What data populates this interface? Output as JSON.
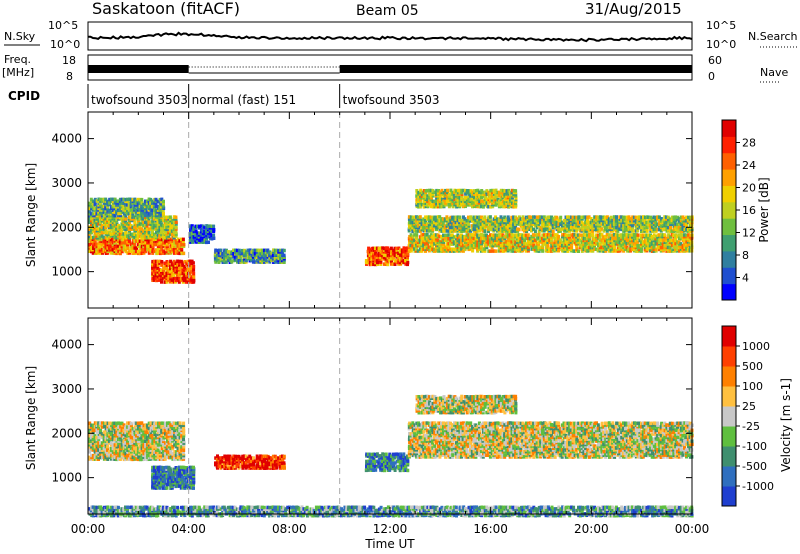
{
  "header": {
    "station": "Saskatoon (fitACF)",
    "beam": "Beam 05",
    "date": "31/Aug/2015"
  },
  "noise_panel": {
    "left_label": "N.Sky",
    "right_label": "N.Search",
    "ticks": [
      "10^5",
      "10^0"
    ]
  },
  "freq_panel": {
    "left_label_1": "Freq.",
    "left_label_2": "[MHz]",
    "left_ticks": [
      18,
      8
    ],
    "right_label": "Nave",
    "right_ticks": [
      60,
      0
    ]
  },
  "cpid": {
    "label": "CPID",
    "segments": [
      {
        "name": "twofsound 3503",
        "start": 0,
        "end": 4
      },
      {
        "name": "normal (fast) 151",
        "start": 4,
        "end": 10
      },
      {
        "name": "twofsound 3503",
        "start": 10,
        "end": 24
      }
    ]
  },
  "chart_data": [
    {
      "type": "heatmap",
      "quantity": "Power",
      "xlabel": "Time UT",
      "ylabel": "Slant Range [km]",
      "xlim": [
        0,
        24
      ],
      "ylim": [
        180,
        4600
      ],
      "yticks": [
        1000,
        2000,
        3000,
        4000
      ],
      "xticks": [
        "00:00",
        "04:00",
        "08:00",
        "12:00",
        "16:00",
        "20:00",
        "00:00"
      ],
      "colorbar": {
        "label": "Power [dB]",
        "ticks": [
          "4",
          "8",
          "12",
          "16",
          "20",
          "24",
          "28"
        ],
        "colors": [
          "#0000ff",
          "#1f4fd0",
          "#2f7fa0",
          "#3f9f70",
          "#6fbf3f",
          "#bfd020",
          "#f0d000",
          "#ffa000",
          "#ff6000",
          "#ff2000",
          "#e00000"
        ]
      },
      "echo_bands": [
        {
          "t0": 0.0,
          "t1": 3.8,
          "r0": 1450,
          "r1": 1800,
          "level": 0.75
        },
        {
          "t0": 0.0,
          "t1": 3.5,
          "r0": 1800,
          "r1": 2300,
          "level": 0.5
        },
        {
          "t0": 0.0,
          "t1": 3.0,
          "r0": 2300,
          "r1": 2700,
          "level": 0.35
        },
        {
          "t0": 2.5,
          "t1": 4.2,
          "r0": 800,
          "r1": 1300,
          "level": 0.85
        },
        {
          "t0": 4.0,
          "t1": 5.0,
          "r0": 1700,
          "r1": 2100,
          "level": 0.15
        },
        {
          "t0": 5.0,
          "t1": 7.8,
          "r0": 1250,
          "r1": 1550,
          "level": 0.3
        },
        {
          "t0": 11.0,
          "t1": 12.7,
          "r0": 1200,
          "r1": 1600,
          "level": 0.8
        },
        {
          "t0": 12.7,
          "t1": 24.0,
          "r0": 1500,
          "r1": 1900,
          "level": 0.55
        },
        {
          "t0": 12.7,
          "t1": 24.0,
          "r0": 1950,
          "r1": 2300,
          "level": 0.45
        },
        {
          "t0": 13.0,
          "t1": 17.0,
          "r0": 2500,
          "r1": 2900,
          "level": 0.5
        }
      ]
    },
    {
      "type": "heatmap",
      "quantity": "Velocity",
      "xlabel": "Time UT",
      "ylabel": "Slant Range [km]",
      "xlim": [
        0,
        24
      ],
      "ylim": [
        180,
        4600
      ],
      "yticks": [
        1000,
        2000,
        3000,
        4000
      ],
      "xticks": [
        "00:00",
        "04:00",
        "08:00",
        "12:00",
        "16:00",
        "20:00",
        "00:00"
      ],
      "colorbar": {
        "label": "Velocity [m s-1]",
        "ticks": [
          "1000",
          "500",
          "100",
          "25",
          "-25",
          "-100",
          "-500",
          "-1000"
        ],
        "colors": [
          "#1f3fcf",
          "#2f6fbf",
          "#3f8f6f",
          "#5fbf3f",
          "#c8c8c8",
          "#ffc040",
          "#ff8000",
          "#ff4000",
          "#e00000"
        ]
      },
      "echo_bands": [
        {
          "t0": 0.0,
          "t1": 3.8,
          "r0": 1450,
          "r1": 2300,
          "level": 0.5
        },
        {
          "t0": 2.5,
          "t1": 4.2,
          "r0": 800,
          "r1": 1300,
          "level": 0.2
        },
        {
          "t0": 5.0,
          "t1": 7.8,
          "r0": 1250,
          "r1": 1550,
          "level": 0.9
        },
        {
          "t0": 11.0,
          "t1": 12.7,
          "r0": 1200,
          "r1": 1600,
          "level": 0.2
        },
        {
          "t0": 12.7,
          "t1": 24.0,
          "r0": 1500,
          "r1": 2300,
          "level": 0.5
        },
        {
          "t0": 13.0,
          "t1": 17.0,
          "r0": 2500,
          "r1": 2900,
          "level": 0.5
        },
        {
          "t0": 0.0,
          "t1": 24.0,
          "r0": 180,
          "r1": 400,
          "level": 0.3
        }
      ]
    }
  ]
}
